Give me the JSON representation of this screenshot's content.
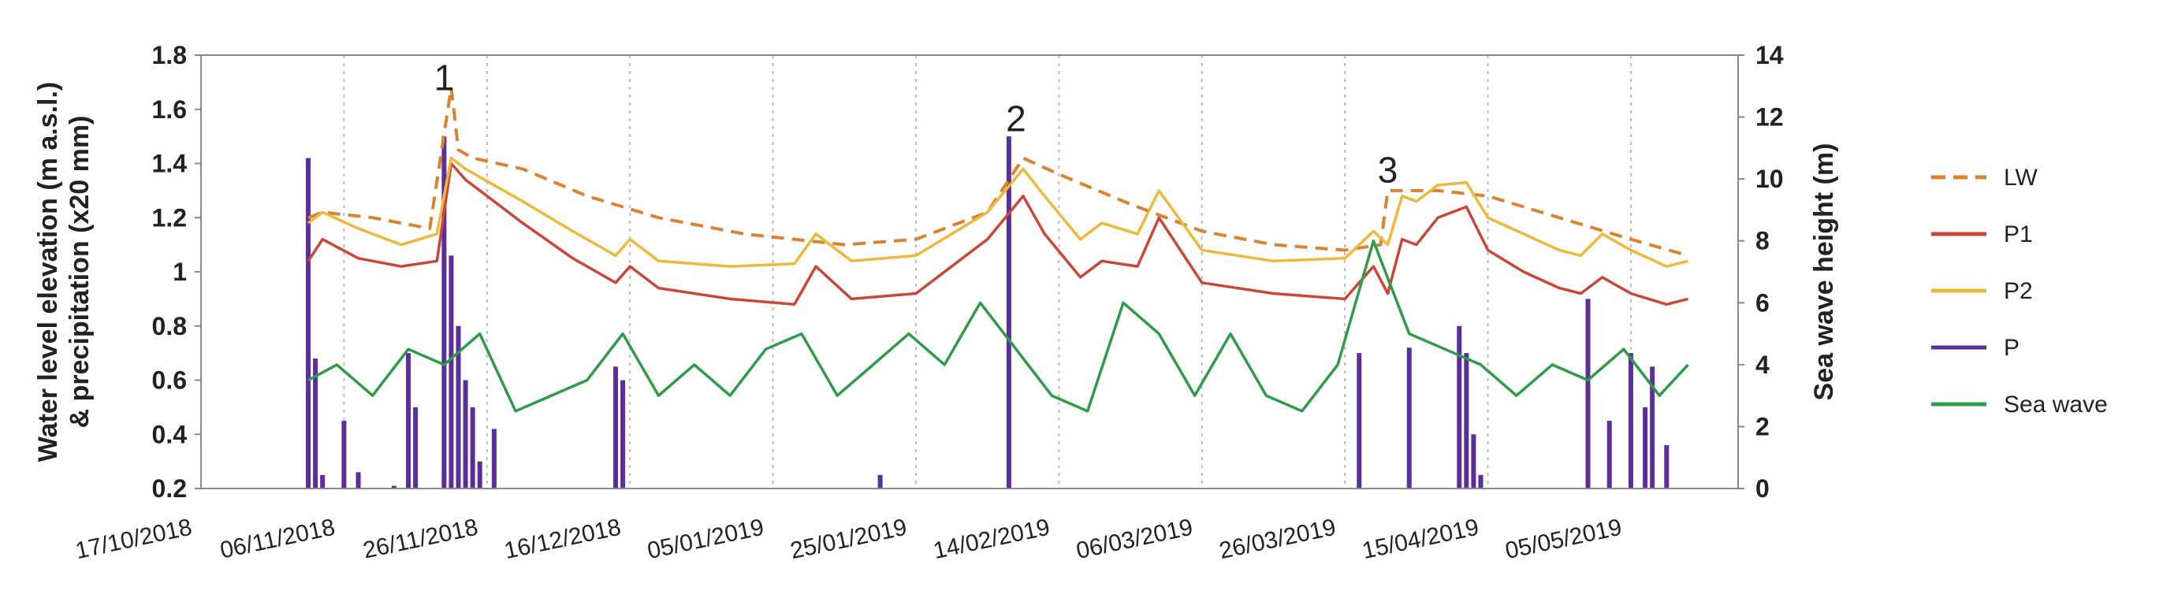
{
  "chart_data": {
    "type": "line",
    "title": "",
    "x_axis": {
      "type": "date",
      "range": [
        "2018-10-17",
        "2019-05-20"
      ],
      "tick_labels": [
        "17/10/2018",
        "06/11/2018",
        "26/11/2018",
        "16/12/2018",
        "05/01/2019",
        "25/01/2019",
        "14/02/2019",
        "06/03/2019",
        "26/03/2019",
        "15/04/2019",
        "05/05/2019"
      ],
      "tick_dates": [
        "2018-10-17",
        "2018-11-06",
        "2018-11-26",
        "2018-12-16",
        "2019-01-05",
        "2019-01-25",
        "2019-02-14",
        "2019-03-06",
        "2019-03-26",
        "2019-04-15",
        "2019-05-05"
      ],
      "grid": "dotted-vertical"
    },
    "y_left": {
      "label_line1": "Water level elevation (m a.s.l.)",
      "label_line2": "& precipitation (x20 mm)",
      "range": [
        0.2,
        1.8
      ],
      "ticks": [
        0.2,
        0.4,
        0.6,
        0.8,
        1,
        1.2,
        1.4,
        1.6,
        1.8
      ],
      "tick_labels": [
        "0.2",
        "0.4",
        "0.6",
        "0.8",
        "1",
        "1.2",
        "1.4",
        "1.6",
        "1.8"
      ]
    },
    "y_right": {
      "label": "Sea wave height (m)",
      "range": [
        0,
        14
      ],
      "ticks": [
        0,
        2,
        4,
        6,
        8,
        10,
        12,
        14
      ],
      "tick_labels": [
        "0",
        "2",
        "4",
        "6",
        "8",
        "10",
        "12",
        "14"
      ]
    },
    "legend": {
      "placement": "right",
      "entries": [
        {
          "name": "LW",
          "color": "#d98232",
          "style": "dashed"
        },
        {
          "name": "P1",
          "color": "#c8473b",
          "style": "solid"
        },
        {
          "name": "P2",
          "color": "#ecb83d",
          "style": "solid"
        },
        {
          "name": "P",
          "color": "#5b2e9a",
          "style": "solid"
        },
        {
          "name": "Sea wave",
          "color": "#2f9a4a",
          "style": "solid"
        }
      ]
    },
    "annotations": [
      {
        "text": "1",
        "x": "2018-11-20",
        "y": 1.67
      },
      {
        "text": "2",
        "x": "2019-02-08",
        "y": 1.52
      },
      {
        "text": "3",
        "x": "2019-04-01",
        "y": 1.33
      }
    ],
    "series": [
      {
        "name": "LW",
        "axis": "left",
        "color": "#d98232",
        "style": "dashed",
        "x": [
          "2018-11-01",
          "2018-11-03",
          "2018-11-10",
          "2018-11-18",
          "2018-11-21",
          "2018-11-22",
          "2018-11-24",
          "2018-12-01",
          "2018-12-10",
          "2018-12-20",
          "2019-01-01",
          "2019-01-15",
          "2019-01-25",
          "2019-02-04",
          "2019-02-09",
          "2019-02-14",
          "2019-02-24",
          "2019-03-06",
          "2019-03-16",
          "2019-03-26",
          "2019-03-31",
          "2019-04-01",
          "2019-04-08",
          "2019-04-15",
          "2019-04-25",
          "2019-05-05",
          "2019-05-13"
        ],
        "values": [
          1.2,
          1.22,
          1.2,
          1.16,
          1.68,
          1.45,
          1.42,
          1.38,
          1.28,
          1.2,
          1.14,
          1.1,
          1.12,
          1.22,
          1.42,
          1.36,
          1.25,
          1.15,
          1.1,
          1.08,
          1.1,
          1.3,
          1.3,
          1.28,
          1.2,
          1.12,
          1.06
        ]
      },
      {
        "name": "P1",
        "axis": "left",
        "color": "#c8473b",
        "style": "solid",
        "x": [
          "2018-11-01",
          "2018-11-03",
          "2018-11-08",
          "2018-11-14",
          "2018-11-19",
          "2018-11-21",
          "2018-11-23",
          "2018-12-01",
          "2018-12-08",
          "2018-12-14",
          "2018-12-16",
          "2018-12-20",
          "2018-12-30",
          "2019-01-08",
          "2019-01-11",
          "2019-01-16",
          "2019-01-25",
          "2019-02-04",
          "2019-02-09",
          "2019-02-12",
          "2019-02-17",
          "2019-02-20",
          "2019-02-25",
          "2019-02-28",
          "2019-03-06",
          "2019-03-16",
          "2019-03-26",
          "2019-03-30",
          "2019-04-01",
          "2019-04-03",
          "2019-04-05",
          "2019-04-08",
          "2019-04-12",
          "2019-04-15",
          "2019-04-20",
          "2019-04-25",
          "2019-04-28",
          "2019-05-01",
          "2019-05-05",
          "2019-05-10",
          "2019-05-13"
        ],
        "values": [
          1.04,
          1.12,
          1.05,
          1.02,
          1.04,
          1.4,
          1.34,
          1.18,
          1.05,
          0.96,
          1.02,
          0.94,
          0.9,
          0.88,
          1.02,
          0.9,
          0.92,
          1.12,
          1.28,
          1.14,
          0.98,
          1.04,
          1.02,
          1.2,
          0.96,
          0.92,
          0.9,
          1.02,
          0.92,
          1.12,
          1.1,
          1.2,
          1.24,
          1.08,
          1.0,
          0.94,
          0.92,
          0.98,
          0.92,
          0.88,
          0.9
        ]
      },
      {
        "name": "P2",
        "axis": "left",
        "color": "#ecb83d",
        "style": "solid",
        "x": [
          "2018-11-01",
          "2018-11-03",
          "2018-11-08",
          "2018-11-14",
          "2018-11-19",
          "2018-11-21",
          "2018-11-23",
          "2018-12-01",
          "2018-12-08",
          "2018-12-14",
          "2018-12-16",
          "2018-12-20",
          "2018-12-30",
          "2019-01-08",
          "2019-01-11",
          "2019-01-16",
          "2019-01-25",
          "2019-02-04",
          "2019-02-09",
          "2019-02-12",
          "2019-02-17",
          "2019-02-20",
          "2019-02-25",
          "2019-02-28",
          "2019-03-06",
          "2019-03-16",
          "2019-03-26",
          "2019-03-30",
          "2019-04-01",
          "2019-04-03",
          "2019-04-05",
          "2019-04-08",
          "2019-04-12",
          "2019-04-15",
          "2019-04-20",
          "2019-04-25",
          "2019-04-28",
          "2019-05-01",
          "2019-05-05",
          "2019-05-10",
          "2019-05-13"
        ],
        "values": [
          1.18,
          1.22,
          1.16,
          1.1,
          1.14,
          1.42,
          1.38,
          1.26,
          1.15,
          1.06,
          1.12,
          1.04,
          1.02,
          1.03,
          1.14,
          1.04,
          1.06,
          1.22,
          1.38,
          1.28,
          1.12,
          1.18,
          1.14,
          1.3,
          1.08,
          1.04,
          1.05,
          1.15,
          1.1,
          1.28,
          1.26,
          1.32,
          1.33,
          1.2,
          1.14,
          1.08,
          1.06,
          1.14,
          1.08,
          1.02,
          1.04
        ]
      },
      {
        "name": "Sea wave",
        "axis": "right",
        "color": "#2f9a4a",
        "style": "solid",
        "x": [
          "2018-11-01",
          "2018-11-05",
          "2018-11-10",
          "2018-11-15",
          "2018-11-20",
          "2018-11-25",
          "2018-11-30",
          "2018-12-05",
          "2018-12-10",
          "2018-12-15",
          "2018-12-20",
          "2018-12-25",
          "2018-12-30",
          "2019-01-04",
          "2019-01-09",
          "2019-01-14",
          "2019-01-19",
          "2019-01-24",
          "2019-01-29",
          "2019-02-03",
          "2019-02-08",
          "2019-02-13",
          "2019-02-18",
          "2019-02-23",
          "2019-02-28",
          "2019-03-05",
          "2019-03-10",
          "2019-03-15",
          "2019-03-20",
          "2019-03-25",
          "2019-03-30",
          "2019-04-04",
          "2019-04-09",
          "2019-04-14",
          "2019-04-19",
          "2019-04-24",
          "2019-04-29",
          "2019-05-04",
          "2019-05-09",
          "2019-05-13"
        ],
        "values": [
          3.5,
          4,
          3,
          4.5,
          4,
          5,
          2.5,
          3,
          3.5,
          5,
          3,
          4,
          3,
          4.5,
          5,
          3,
          4,
          5,
          4,
          6,
          4.5,
          3,
          2.5,
          6,
          5,
          3,
          5,
          3,
          2.5,
          4,
          8,
          5,
          4.5,
          4,
          3,
          4,
          3.5,
          4.5,
          3,
          4
        ]
      },
      {
        "name": "P",
        "axis": "left",
        "color": "#5b2e9a",
        "style": "bars",
        "x": [
          "2018-11-01",
          "2018-11-02",
          "2018-11-03",
          "2018-11-06",
          "2018-11-08",
          "2018-11-13",
          "2018-11-15",
          "2018-11-16",
          "2018-11-20",
          "2018-11-21",
          "2018-11-22",
          "2018-11-23",
          "2018-11-24",
          "2018-11-25",
          "2018-11-27",
          "2018-12-14",
          "2018-12-15",
          "2019-01-20",
          "2019-02-07",
          "2019-03-28",
          "2019-04-04",
          "2019-04-11",
          "2019-04-12",
          "2019-04-13",
          "2019-04-14",
          "2019-04-29",
          "2019-05-02",
          "2019-05-05",
          "2019-05-07",
          "2019-05-08",
          "2019-05-10"
        ],
        "values": [
          1.42,
          0.68,
          0.25,
          0.45,
          0.26,
          0.21,
          0.7,
          0.5,
          1.5,
          1.06,
          0.8,
          0.6,
          0.5,
          0.3,
          0.42,
          0.65,
          0.6,
          0.25,
          1.5,
          0.7,
          0.72,
          0.8,
          0.7,
          0.4,
          0.25,
          0.9,
          0.45,
          0.7,
          0.5,
          0.65,
          0.36
        ]
      }
    ]
  }
}
